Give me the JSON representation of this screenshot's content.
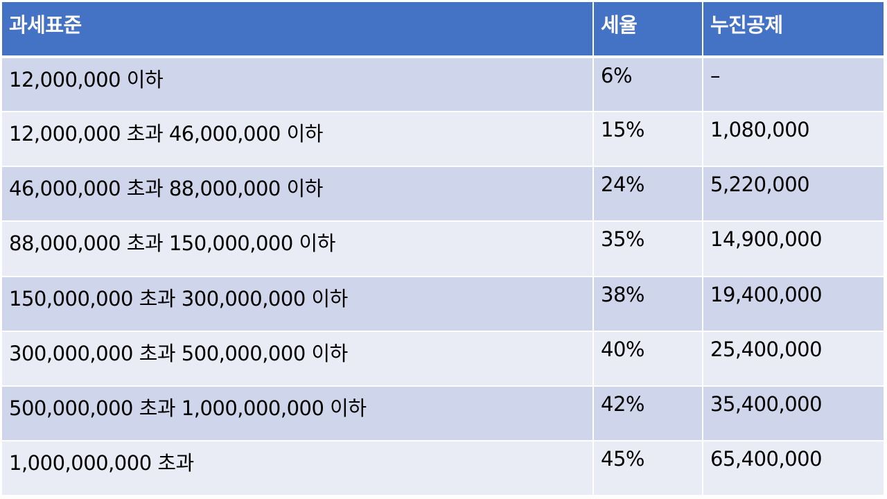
{
  "table": {
    "headers": [
      "과세표준",
      "세율",
      "누진공제"
    ],
    "rows": [
      [
        "12,000,000 이하",
        "6%",
        "–"
      ],
      [
        "12,000,000 초과 46,000,000 이하",
        "15%",
        "1,080,000"
      ],
      [
        "46,000,000 초과 88,000,000 이하",
        "24%",
        "5,220,000"
      ],
      [
        "88,000,000 초과 150,000,000 이하",
        "35%",
        "14,900,000"
      ],
      [
        "150,000,000 초과 300,000,000 이하",
        "38%",
        "19,400,000"
      ],
      [
        "300,000,000 초과 500,000,000 이하",
        "40%",
        "25,400,000"
      ],
      [
        "500,000,000 초과 1,000,000,000 이하",
        "42%",
        "35,400,000"
      ],
      [
        "1,000,000,000 초과",
        "45%",
        "65,400,000"
      ]
    ]
  },
  "colors": {
    "header_bg": "#4472C4",
    "row_odd_bg": "#CFD5EA",
    "row_even_bg": "#E9EBF5"
  }
}
